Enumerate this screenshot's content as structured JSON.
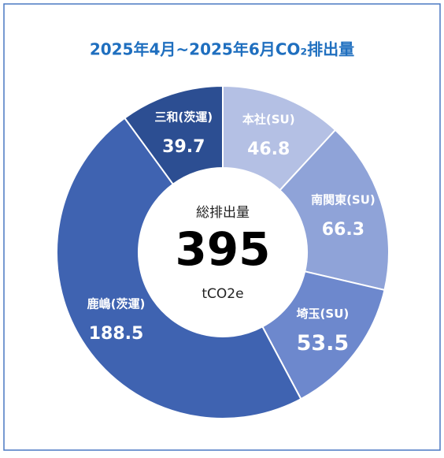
{
  "chart_data": {
    "type": "donut",
    "title": "2025年4月~2025年6月CO₂排出量",
    "categories": [
      "本社(SU)",
      "南関東(SU)",
      "埼玉(SU)",
      "鹿嶋(茨運)",
      "三和(茨運)"
    ],
    "values": [
      46.8,
      66.3,
      53.5,
      188.5,
      39.7
    ],
    "colors": [
      "#b4c0e4",
      "#8fa3d8",
      "#6d88cd",
      "#3f63b1",
      "#2c4e92"
    ],
    "center_label": "総排出量",
    "total": 395,
    "unit": "tCO2e"
  }
}
